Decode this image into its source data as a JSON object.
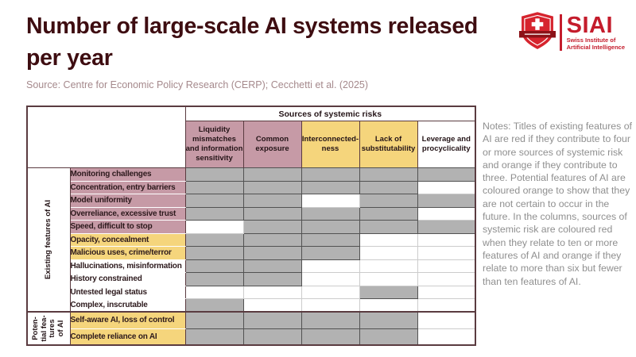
{
  "header": {
    "title": "Number of large-scale AI systems released per year",
    "logo": {
      "acronym": "SIAI",
      "tagline_line1": "Swiss Institute of",
      "tagline_line2": "Artificial Intelligence"
    }
  },
  "source": {
    "text": "Source: Centre for Economic Policy Research (CERP); Cecchetti et al. (2025)"
  },
  "notes": {
    "text": "Notes: Titles of existing features of AI are red if they contribute to four or more sources of systemic risk and orange if they contribute to three. Potential features of AI are coloured orange to show that they are not certain to occur in the future. In the columns, sources of systemic risk are coloured red when they relate to ten or more features of AI and orange if they relate to more than six but fewer than ten features of AI."
  },
  "colors": {
    "title_text": "#3e0d11",
    "brand_red": "#c41c2c",
    "risk_red_fill": "#c69aa6",
    "risk_orange_fill": "#f5d57c",
    "contribution_cell_gray": "#b2b2b2",
    "table_border": "#5a3b40",
    "source_text": "#a5898c",
    "notes_text": "#8f8f8f"
  },
  "chart_data": {
    "type": "heatmap",
    "title": "Number of large-scale AI systems released per year",
    "column_group_label": "Sources of systemic risks",
    "cell_encoding": "1 = gray filled cell (feature of AI contributes to that source of systemic risk), 0 = white cell",
    "risk_color_encoding": {
      "column_red": "relates to ten or more features of AI",
      "column_orange": "relates to more than six but fewer than ten features of AI",
      "row_red": "contributes to four or more sources of systemic risk",
      "row_orange": "contributes to three sources / potential feature not certain to occur"
    },
    "columns": [
      {
        "label": "Liquidity mismatches and information sensitivity",
        "risk_color": "red"
      },
      {
        "label": "Common exposure",
        "risk_color": "red"
      },
      {
        "label": "Interconnected-ness",
        "risk_color": "orange"
      },
      {
        "label": "Lack of substitutability",
        "risk_color": "orange"
      },
      {
        "label": "Leverage and procyclicality",
        "risk_color": "none"
      }
    ],
    "row_groups": [
      {
        "label_lines": [
          "Existing features of AI"
        ],
        "rows": [
          {
            "label": "Monitoring challenges",
            "risk_color": "red",
            "cells": [
              1,
              1,
              1,
              1,
              1
            ]
          },
          {
            "label": "Concentration, entry barriers",
            "risk_color": "red",
            "cells": [
              1,
              1,
              1,
              1,
              0
            ]
          },
          {
            "label": "Model uniformity",
            "risk_color": "red",
            "cells": [
              1,
              1,
              0,
              1,
              1
            ]
          },
          {
            "label": "Overreliance, excessive trust",
            "risk_color": "red",
            "cells": [
              1,
              1,
              1,
              1,
              0
            ]
          },
          {
            "label": "Speed, difficult to stop",
            "risk_color": "red",
            "cells": [
              0,
              1,
              1,
              1,
              1
            ]
          },
          {
            "label": "Opacity, concealment",
            "risk_color": "orange",
            "cells": [
              1,
              1,
              1,
              0,
              0
            ]
          },
          {
            "label": "Malicious uses, crime/terror",
            "risk_color": "orange",
            "cells": [
              1,
              1,
              1,
              0,
              0
            ]
          },
          {
            "label": "Hallucinations, misinformation",
            "risk_color": "none",
            "cells": [
              1,
              1,
              0,
              0,
              0
            ]
          },
          {
            "label": "History constrained",
            "risk_color": "none",
            "cells": [
              1,
              1,
              0,
              0,
              0
            ]
          },
          {
            "label": "Untested legal status",
            "risk_color": "none",
            "cells": [
              0,
              0,
              0,
              1,
              0
            ]
          },
          {
            "label": "Complex, inscrutable",
            "risk_color": "none",
            "cells": [
              1,
              0,
              0,
              0,
              0
            ]
          }
        ]
      },
      {
        "label_lines": [
          "Poten-",
          "tial fea-",
          "tures",
          "of AI"
        ],
        "rows": [
          {
            "label": "Self-aware AI, loss of control",
            "risk_color": "orange",
            "cells": [
              1,
              1,
              1,
              1,
              0
            ]
          },
          {
            "label": "Complete reliance on AI",
            "risk_color": "orange",
            "cells": [
              1,
              1,
              1,
              1,
              0
            ]
          }
        ]
      }
    ]
  }
}
